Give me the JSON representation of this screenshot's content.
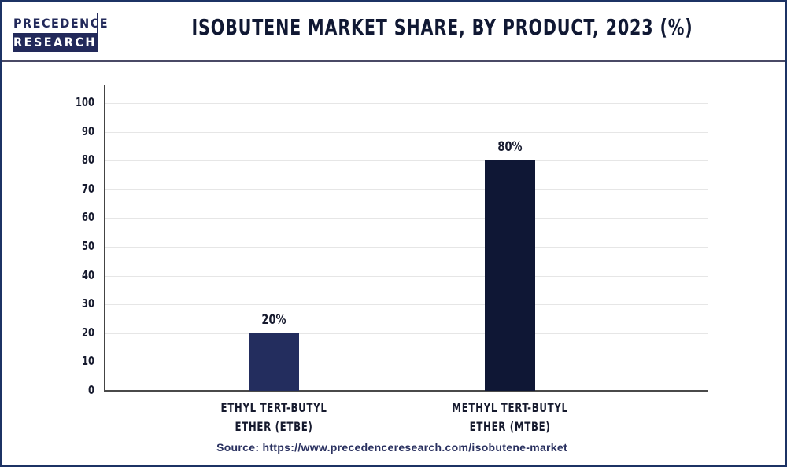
{
  "header": {
    "logo_line1": "PRECEDENCE",
    "logo_line2": "RESEARCH",
    "title": "ISOBUTENE MARKET SHARE, BY PRODUCT, 2023 (%)"
  },
  "footer": {
    "source": "Source: https://www.precedenceresearch.com/isobutene-market"
  },
  "colors": {
    "border": "#1c3264",
    "etbe_bar": "#232d5e",
    "mtbe_bar": "#0f1735",
    "text": "#161a2e"
  },
  "chart_data": {
    "type": "bar",
    "title": "ISOBUTENE MARKET SHARE, BY PRODUCT, 2023 (%)",
    "categories": [
      "ETHYL TERT-BUTYL ETHER (ETBE)",
      "METHYL TERT-BUTYL ETHER (MTBE)"
    ],
    "category_lines": [
      [
        "ETHYL TERT-BUTYL",
        "ETHER (ETBE)"
      ],
      [
        "METHYL TERT-BUTYL",
        "ETHER (MTBE)"
      ]
    ],
    "values": [
      20,
      80
    ],
    "data_labels": [
      "20%",
      "80%"
    ],
    "xlabel": "",
    "ylabel": "",
    "ylim": [
      0,
      100
    ],
    "yticks": [
      "0",
      "10",
      "20",
      "30",
      "40",
      "50",
      "60",
      "70",
      "80",
      "90",
      "100"
    ],
    "grid": true,
    "legend": "none"
  }
}
